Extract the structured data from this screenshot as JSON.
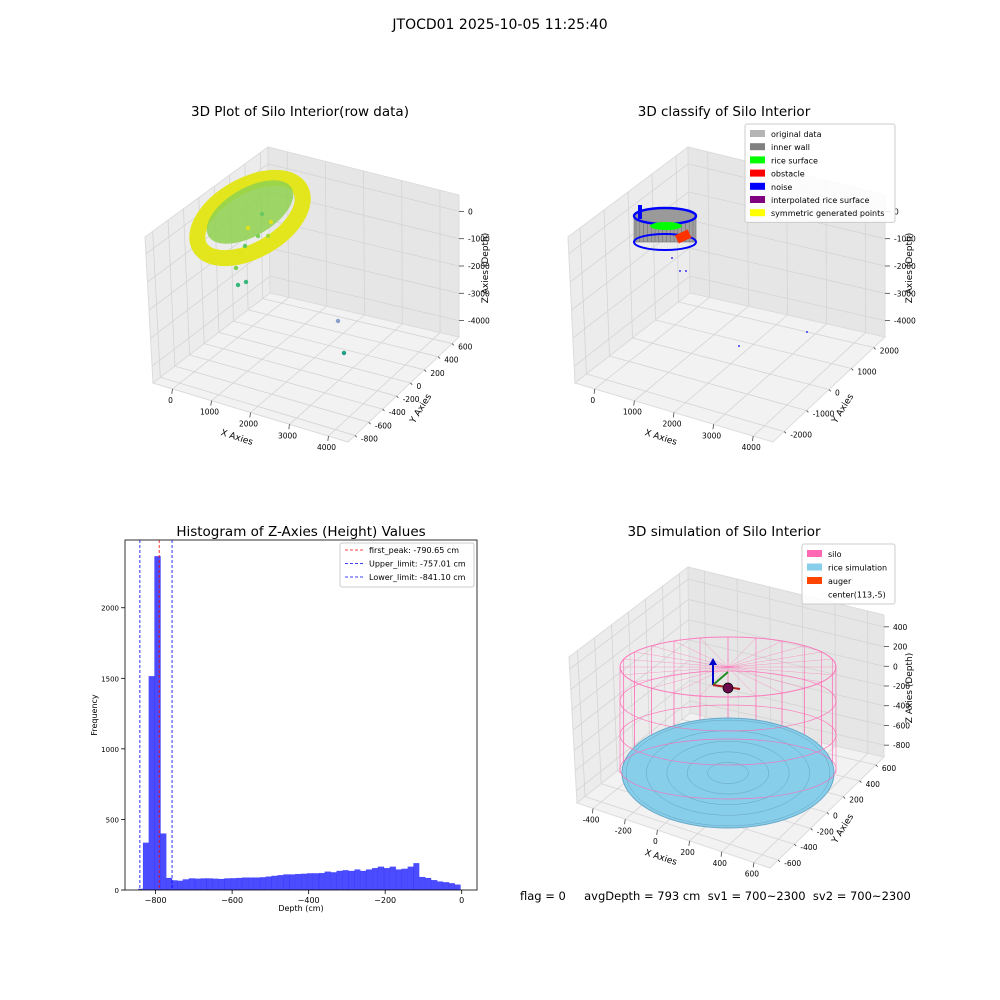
{
  "figure": {
    "suptitle": "JTOCD01 2025-10-05 11:25:40",
    "note": "flag = 0     avgDepth = 793 cm  sv1 = 700~2300  sv2 = 700~2300"
  },
  "panels": {
    "raw3d": {
      "title": "3D Plot of Silo Interior(row data)",
      "xlabel": "X Axies",
      "ylabel": "Y Axies",
      "zlabel": "Z Axies (Depth)",
      "xticks": [
        "0",
        "1000",
        "2000",
        "3000",
        "4000"
      ],
      "yticks": [
        "-800",
        "-600",
        "-400",
        "-200",
        "0",
        "200",
        "400",
        "600"
      ],
      "zticks": [
        "0",
        "-1000",
        "-2000",
        "-3000",
        "-4000"
      ]
    },
    "classify3d": {
      "title": "3D classify of Silo Interior",
      "xlabel": "X Axies",
      "ylabel": "Y Axies",
      "zlabel": "Z Axies (Depth)",
      "xticks": [
        "0",
        "1000",
        "2000",
        "3000",
        "4000"
      ],
      "yticks": [
        "-2000",
        "-1000",
        "0",
        "1000",
        "2000"
      ],
      "zticks": [
        "0",
        "-1000",
        "-2000",
        "-3000",
        "-4000"
      ],
      "legend": [
        {
          "label": "original data",
          "color": "#b4b4b4"
        },
        {
          "label": "inner wall",
          "color": "#808080"
        },
        {
          "label": "rice surface",
          "color": "#00ff00"
        },
        {
          "label": "obstacle",
          "color": "#ff0000"
        },
        {
          "label": "noise",
          "color": "#0000ff"
        },
        {
          "label": "interpolated rice surface",
          "color": "#800080"
        },
        {
          "label": "symmetric generated points",
          "color": "#ffff00"
        }
      ]
    },
    "sim3d": {
      "title": "3D simulation of Silo Interior",
      "xlabel": "X Axies",
      "ylabel": "Y Axies",
      "zlabel": "Z Axies (Depth)",
      "xticks": [
        "-400",
        "-200",
        "0",
        "200",
        "400",
        "600"
      ],
      "yticks": [
        "-600",
        "-400",
        "-200",
        "0",
        "200",
        "400",
        "600"
      ],
      "zticks": [
        "400",
        "200",
        "0",
        "-200",
        "-400",
        "-600",
        "-800"
      ],
      "legend": [
        {
          "label": "silo",
          "color": "#ff69b4"
        },
        {
          "label": "rice simulation",
          "color": "#87ceeb"
        },
        {
          "label": "auger",
          "color": "#ff4500"
        },
        {
          "label": "center(113,-5)",
          "color": "#ffffff"
        }
      ]
    }
  },
  "chart_data": [
    {
      "type": "bar",
      "title": "Histogram of Z-Axies (Height) Values",
      "xlabel": "Depth (cm)",
      "ylabel": "Frequency",
      "xlim": [
        -880,
        40
      ],
      "ylim": [
        0,
        2480
      ],
      "xticks": [
        -800,
        -600,
        -400,
        -200,
        0
      ],
      "yticks": [
        0,
        500,
        1000,
        1500,
        2000
      ],
      "bar_color": "#0000ff",
      "bins": [
        {
          "x0": -845,
          "x1": -833,
          "y": 8
        },
        {
          "x0": -833,
          "x1": -818,
          "y": 335
        },
        {
          "x0": -818,
          "x1": -803,
          "y": 1515
        },
        {
          "x0": -803,
          "x1": -787,
          "y": 2365
        },
        {
          "x0": -787,
          "x1": -772,
          "y": 400
        },
        {
          "x0": -772,
          "x1": -757,
          "y": 85
        },
        {
          "x0": -757,
          "x1": -743,
          "y": 68
        },
        {
          "x0": -743,
          "x1": -729,
          "y": 65
        },
        {
          "x0": -729,
          "x1": -713,
          "y": 75
        },
        {
          "x0": -713,
          "x1": -697,
          "y": 82
        },
        {
          "x0": -697,
          "x1": -682,
          "y": 80
        },
        {
          "x0": -682,
          "x1": -667,
          "y": 82
        },
        {
          "x0": -667,
          "x1": -651,
          "y": 82
        },
        {
          "x0": -651,
          "x1": -636,
          "y": 80
        },
        {
          "x0": -636,
          "x1": -620,
          "y": 78
        },
        {
          "x0": -620,
          "x1": -605,
          "y": 82
        },
        {
          "x0": -605,
          "x1": -589,
          "y": 83
        },
        {
          "x0": -589,
          "x1": -574,
          "y": 85
        },
        {
          "x0": -574,
          "x1": -558,
          "y": 88
        },
        {
          "x0": -558,
          "x1": -543,
          "y": 88
        },
        {
          "x0": -543,
          "x1": -527,
          "y": 88
        },
        {
          "x0": -527,
          "x1": -512,
          "y": 90
        },
        {
          "x0": -512,
          "x1": -497,
          "y": 95
        },
        {
          "x0": -497,
          "x1": -481,
          "y": 100
        },
        {
          "x0": -481,
          "x1": -466,
          "y": 105
        },
        {
          "x0": -466,
          "x1": -450,
          "y": 110
        },
        {
          "x0": -450,
          "x1": -435,
          "y": 110
        },
        {
          "x0": -435,
          "x1": -419,
          "y": 113
        },
        {
          "x0": -419,
          "x1": -404,
          "y": 115
        },
        {
          "x0": -404,
          "x1": -389,
          "y": 118
        },
        {
          "x0": -389,
          "x1": -373,
          "y": 118
        },
        {
          "x0": -373,
          "x1": -358,
          "y": 120
        },
        {
          "x0": -358,
          "x1": -342,
          "y": 130
        },
        {
          "x0": -342,
          "x1": -327,
          "y": 125
        },
        {
          "x0": -327,
          "x1": -311,
          "y": 135
        },
        {
          "x0": -311,
          "x1": -296,
          "y": 140
        },
        {
          "x0": -296,
          "x1": -280,
          "y": 135
        },
        {
          "x0": -280,
          "x1": -265,
          "y": 145
        },
        {
          "x0": -265,
          "x1": -250,
          "y": 135
        },
        {
          "x0": -250,
          "x1": -234,
          "y": 145
        },
        {
          "x0": -234,
          "x1": -219,
          "y": 155
        },
        {
          "x0": -219,
          "x1": -203,
          "y": 165
        },
        {
          "x0": -203,
          "x1": -188,
          "y": 155
        },
        {
          "x0": -188,
          "x1": -172,
          "y": 165
        },
        {
          "x0": -172,
          "x1": -157,
          "y": 145
        },
        {
          "x0": -157,
          "x1": -141,
          "y": 150
        },
        {
          "x0": -141,
          "x1": -126,
          "y": 165
        },
        {
          "x0": -126,
          "x1": -111,
          "y": 190
        },
        {
          "x0": -111,
          "x1": -95,
          "y": 92
        },
        {
          "x0": -95,
          "x1": -80,
          "y": 85
        },
        {
          "x0": -80,
          "x1": -64,
          "y": 70
        },
        {
          "x0": -64,
          "x1": -49,
          "y": 60
        },
        {
          "x0": -49,
          "x1": -33,
          "y": 55
        },
        {
          "x0": -33,
          "x1": -18,
          "y": 48
        },
        {
          "x0": -18,
          "x1": -3,
          "y": 38
        }
      ],
      "vlines": [
        {
          "x": -790.65,
          "color": "#ff0000",
          "label": "first_peak: -790.65 cm"
        },
        {
          "x": -757.01,
          "color": "#0000ff",
          "label": "Upper_limit: -757.01 cm"
        },
        {
          "x": -841.1,
          "color": "#0000ff",
          "label": "Lower_limit: -841.10 cm"
        }
      ]
    }
  ]
}
